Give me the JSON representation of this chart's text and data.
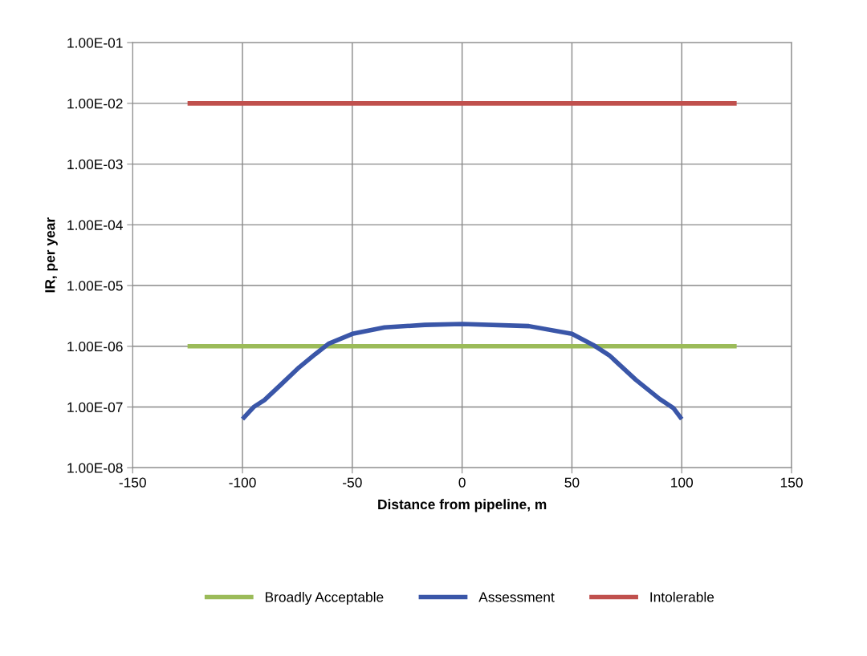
{
  "chart_data": {
    "type": "line",
    "xlabel": "Distance from pipeline, m",
    "ylabel": "IR, per year",
    "series": [
      {
        "name": "Broadly Acceptable",
        "color": "#9bbb59",
        "x": [
          -125,
          125
        ],
        "values": [
          1e-06,
          1e-06
        ]
      },
      {
        "name": "Assessment",
        "color": "#3a56a8",
        "x": [
          -100,
          -94.9,
          -90,
          -82.7,
          -74.2,
          -66.9,
          -60.8,
          -50,
          -35.3,
          -17,
          0,
          30.4,
          50,
          59.7,
          67,
          79.1,
          90,
          96.2,
          100
        ],
        "values": [
          6.3e-08,
          1e-07,
          1.3e-07,
          2.3e-07,
          4.5e-07,
          7.4e-07,
          1.1e-06,
          1.6e-06,
          2.05e-06,
          2.25e-06,
          2.33e-06,
          2.15e-06,
          1.6e-06,
          1.05e-06,
          7.1e-07,
          2.8e-07,
          1.35e-07,
          9.6e-08,
          6.3e-08
        ]
      },
      {
        "name": "Intolerable",
        "color": "#c0504d",
        "x": [
          -125,
          125
        ],
        "values": [
          0.01,
          0.01
        ]
      }
    ],
    "log": "y",
    "xlim": [
      -150,
      150
    ],
    "xticks": [
      -150,
      -100,
      -50,
      0,
      50,
      100,
      150
    ],
    "ylim": [
      1e-08,
      0.1
    ],
    "yticks": [
      {
        "value": 1e-08,
        "label": "1.00E-08"
      },
      {
        "value": 1e-07,
        "label": "1.00E-07"
      },
      {
        "value": 1e-06,
        "label": "1.00E-06"
      },
      {
        "value": 1e-05,
        "label": "1.00E-05"
      },
      {
        "value": 0.0001,
        "label": "1.00E-04"
      },
      {
        "value": 0.001,
        "label": "1.00E-03"
      },
      {
        "value": 0.01,
        "label": "1.00E-02"
      },
      {
        "value": 0.1,
        "label": "1.00E-01"
      }
    ],
    "grid": true,
    "legend": "bottom",
    "marker": "none",
    "line_style": "solid"
  }
}
